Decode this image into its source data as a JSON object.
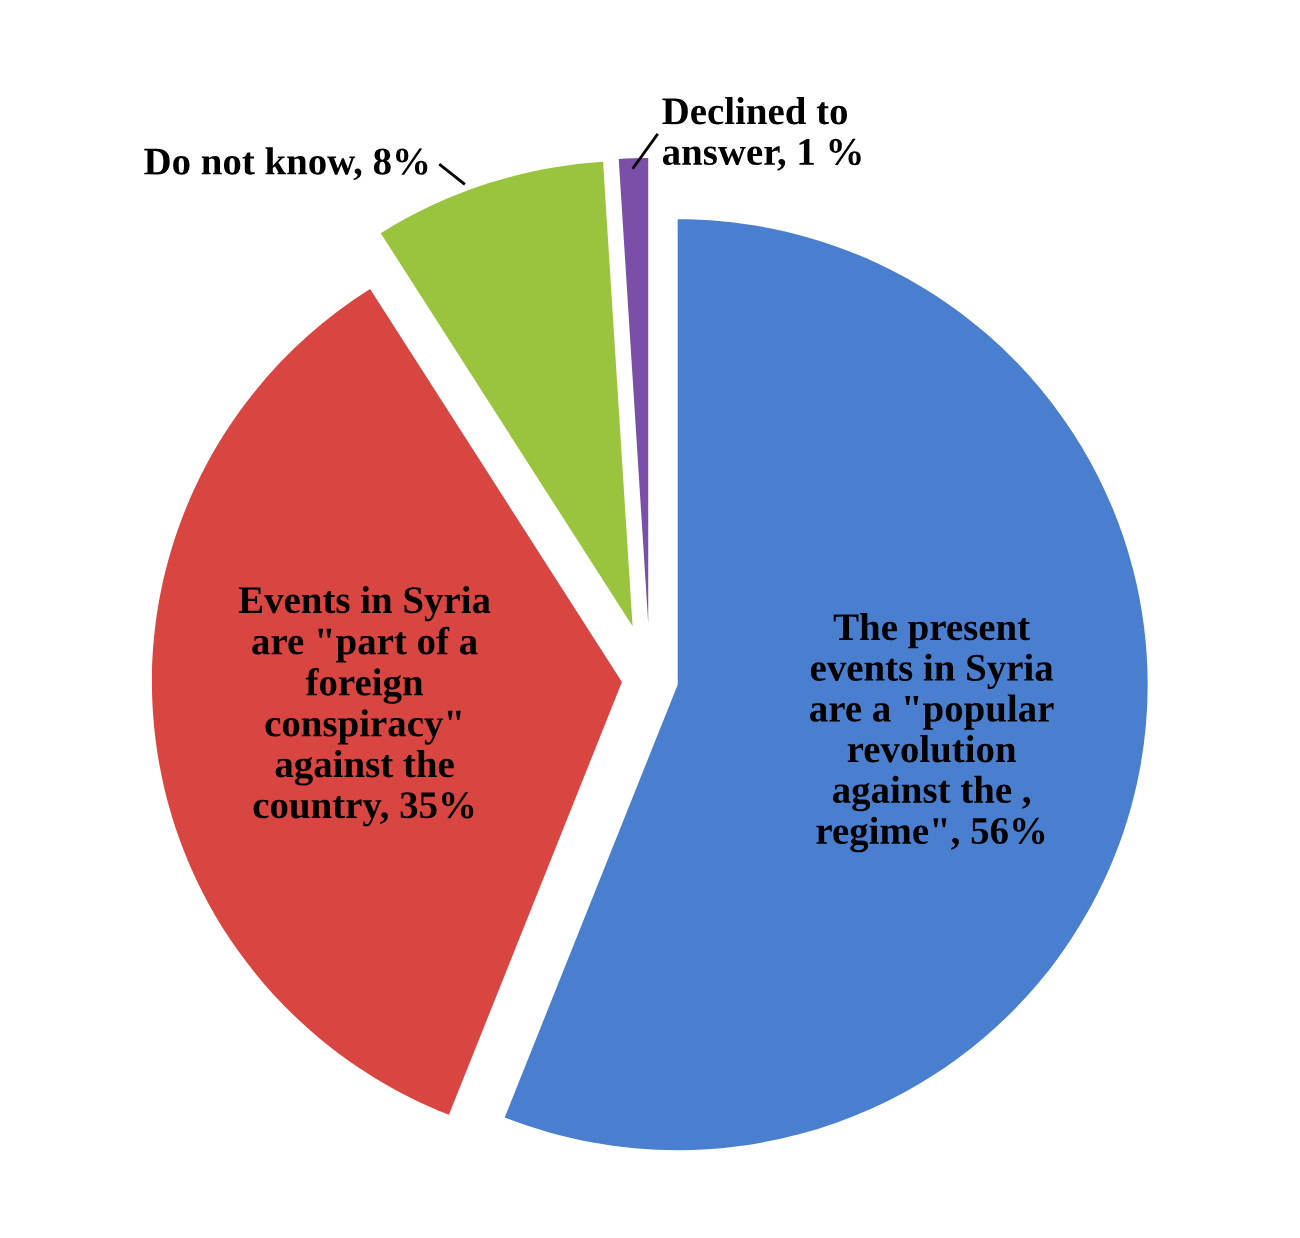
{
  "chart_data": {
    "type": "pie",
    "categories": [
      "The present\nevents in Syria\nare a \"popular\nrevolution\nagainst the ,\nregime\"",
      "Events in Syria\nare \"part of a\nforeign\nconspiracy\"\nagainst the\ncountry",
      "Do not know",
      "Declined to\nanswer"
    ],
    "values": [
      56,
      35,
      8,
      1
    ],
    "value_labels": [
      "56%",
      "35%",
      "8%",
      "1 %"
    ],
    "colors": [
      "#4a7fd0",
      "#d94540",
      "#9bc43e",
      "#7b4fa8"
    ]
  }
}
